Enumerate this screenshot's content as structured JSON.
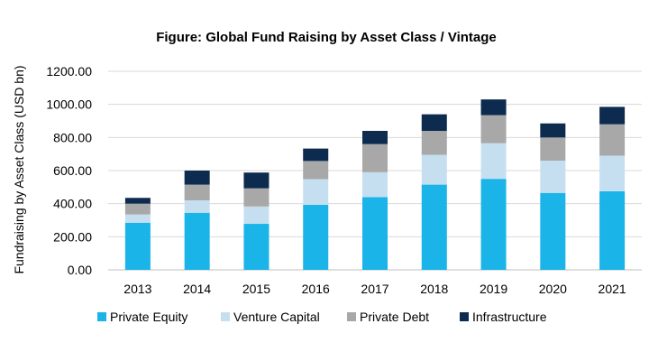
{
  "chart_data": {
    "type": "bar",
    "stacked": true,
    "title": "Figure: Global Fund Raising by Asset Class / Vintage",
    "xlabel": "",
    "ylabel": "Fundraising by Asset Class (USD bn)",
    "ylim": [
      0,
      1200
    ],
    "yticks": [
      "0.00",
      "200.00",
      "400.00",
      "600.00",
      "800.00",
      "1000.00",
      "1200.00"
    ],
    "grid": true,
    "legend_position": "bottom",
    "categories": [
      "2013",
      "2014",
      "2015",
      "2016",
      "2017",
      "2018",
      "2019",
      "2020",
      "2021"
    ],
    "series": [
      {
        "name": "Private Equity",
        "color": "#1ab4e8",
        "values": [
          285,
          345,
          278,
          393,
          440,
          515,
          550,
          465,
          475
        ]
      },
      {
        "name": "Venture Capital",
        "color": "#c6dff0",
        "values": [
          50,
          75,
          105,
          155,
          150,
          180,
          215,
          195,
          215
        ]
      },
      {
        "name": "Private Debt",
        "color": "#a8a8a8",
        "values": [
          65,
          95,
          110,
          110,
          170,
          145,
          170,
          140,
          190
        ]
      },
      {
        "name": "Infrastructure",
        "color": "#0d2a4f",
        "values": [
          35,
          85,
          95,
          75,
          80,
          100,
          95,
          85,
          105
        ]
      }
    ]
  }
}
